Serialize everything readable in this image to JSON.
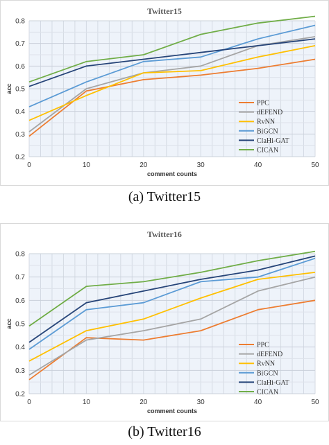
{
  "captions": [
    "(a)  Twitter15",
    "(b)  Twitter16"
  ],
  "chart_data": [
    {
      "type": "line",
      "title": "Twitter15",
      "xlabel": "comment counts",
      "ylabel": "acc",
      "x": [
        0,
        10,
        20,
        30,
        40,
        50
      ],
      "xticks": [
        "0",
        "10",
        "20",
        "30",
        "40",
        "50"
      ],
      "ylim": [
        0.2,
        0.8
      ],
      "yticks": [
        "0.2",
        "0.3",
        "0.4",
        "0.5",
        "0.6",
        "0.7",
        "0.8"
      ],
      "grid": true,
      "legend": "bottom-right",
      "series": [
        {
          "name": "PPC",
          "color": "#ed7d31",
          "values": [
            0.29,
            0.49,
            0.54,
            0.56,
            0.59,
            0.63
          ]
        },
        {
          "name": "dEFEND",
          "color": "#a5a5a5",
          "values": [
            0.31,
            0.5,
            0.57,
            0.6,
            0.69,
            0.73
          ]
        },
        {
          "name": "RvNN",
          "color": "#ffc000",
          "values": [
            0.36,
            0.47,
            0.57,
            0.58,
            0.64,
            0.69
          ]
        },
        {
          "name": "BiGCN",
          "color": "#5b9bd5",
          "values": [
            0.42,
            0.53,
            0.62,
            0.64,
            0.72,
            0.78
          ]
        },
        {
          "name": "ClaHi-GAT",
          "color": "#264478",
          "values": [
            0.51,
            0.6,
            0.63,
            0.66,
            0.69,
            0.72
          ]
        },
        {
          "name": "CICAN",
          "color": "#70ad47",
          "values": [
            0.53,
            0.62,
            0.65,
            0.74,
            0.79,
            0.82
          ]
        }
      ]
    },
    {
      "type": "line",
      "title": "Twitter16",
      "xlabel": "comment counts",
      "ylabel": "acc",
      "x": [
        0,
        10,
        20,
        30,
        40,
        50
      ],
      "xticks": [
        "0",
        "10",
        "20",
        "30",
        "40",
        "50"
      ],
      "ylim": [
        0.2,
        0.8
      ],
      "yticks": [
        "0.2",
        "0.3",
        "0.4",
        "0.5",
        "0.6",
        "0.7",
        "0.8"
      ],
      "grid": true,
      "legend": "bottom-right",
      "series": [
        {
          "name": "PPC",
          "color": "#ed7d31",
          "values": [
            0.26,
            0.44,
            0.43,
            0.47,
            0.56,
            0.6
          ]
        },
        {
          "name": "dEFEND",
          "color": "#a5a5a5",
          "values": [
            0.28,
            0.43,
            0.47,
            0.52,
            0.64,
            0.7
          ]
        },
        {
          "name": "RvNN",
          "color": "#ffc000",
          "values": [
            0.34,
            0.47,
            0.52,
            0.61,
            0.69,
            0.72
          ]
        },
        {
          "name": "BiGCN",
          "color": "#5b9bd5",
          "values": [
            0.39,
            0.56,
            0.59,
            0.68,
            0.7,
            0.78
          ]
        },
        {
          "name": "ClaHi-GAT",
          "color": "#264478",
          "values": [
            0.42,
            0.59,
            0.64,
            0.69,
            0.73,
            0.79
          ]
        },
        {
          "name": "CICAN",
          "color": "#70ad47",
          "values": [
            0.49,
            0.66,
            0.68,
            0.72,
            0.77,
            0.81
          ]
        }
      ]
    }
  ]
}
